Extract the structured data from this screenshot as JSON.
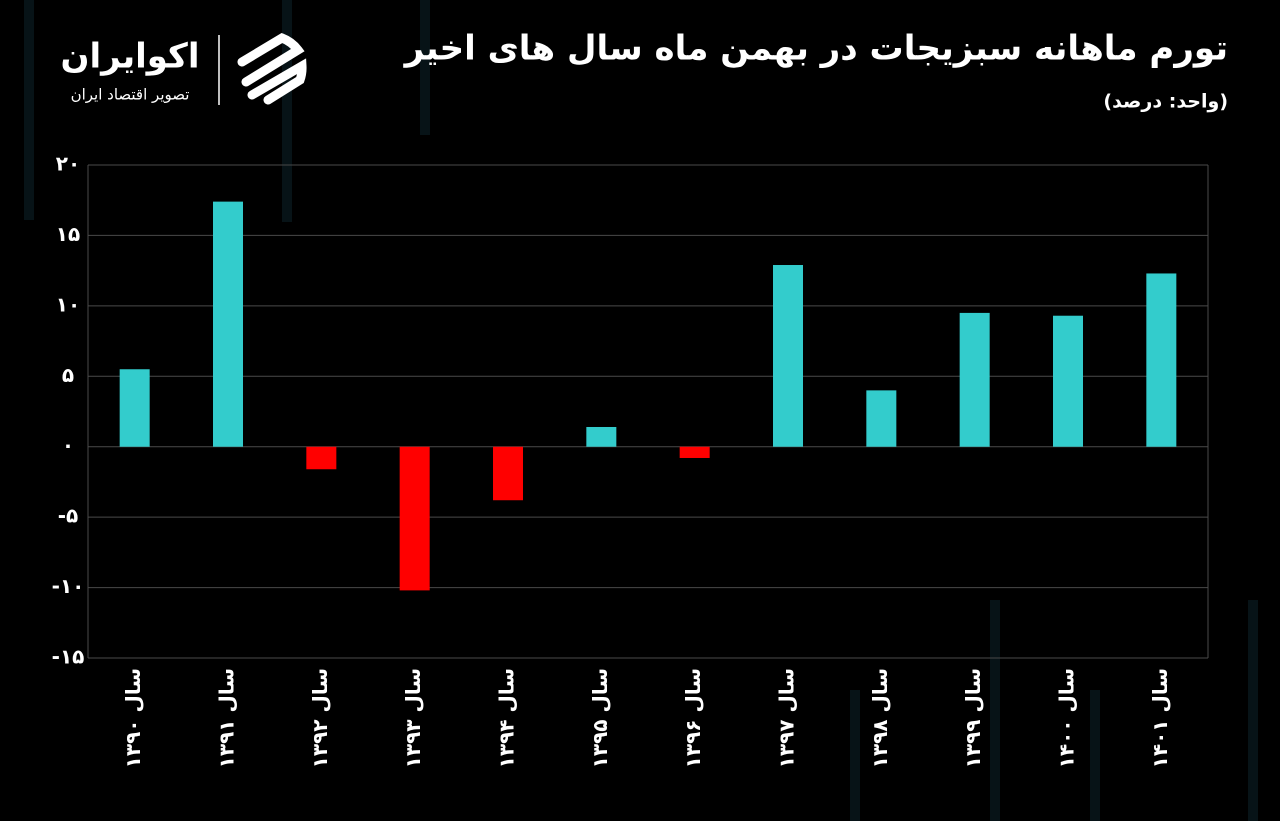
{
  "brand": {
    "name": "اکوایران",
    "tagline": "تصویر اقتصاد ایران"
  },
  "chart_data": {
    "type": "bar",
    "title": "تورم ماهانه سبزیجات در بهمن ماه سال های اخیر",
    "subtitle": "(واحد: درصد)",
    "categories": [
      "سال ۱۳۹۰",
      "سال ۱۳۹۱",
      "سال ۱۳۹۲",
      "سال ۱۳۹۳",
      "سال ۱۳۹۴",
      "سال ۱۳۹۵",
      "سال ۱۳۹۶",
      "سال ۱۳۹۷",
      "سال ۱۳۹۸",
      "سال ۱۳۹۹",
      "سال ۱۴۰۰",
      "سال ۱۴۰۱"
    ],
    "values": [
      5.5,
      17.4,
      -1.6,
      -10.2,
      -3.8,
      1.4,
      -0.8,
      12.9,
      4.0,
      9.5,
      9.3,
      12.3
    ],
    "positive_color": "#33cccc",
    "negative_color": "#ff0000",
    "ylim": [
      -15,
      20
    ],
    "yticks": [
      {
        "value": 20,
        "label": "۲۰"
      },
      {
        "value": 15,
        "label": "۱۵"
      },
      {
        "value": 10,
        "label": "۱۰"
      },
      {
        "value": 5,
        "label": "۵"
      },
      {
        "value": 0,
        "label": "۰"
      },
      {
        "value": -5,
        "label": "-۵"
      },
      {
        "value": -10,
        "label": "-۱۰"
      },
      {
        "value": -15,
        "label": "-۱۵"
      }
    ],
    "grid": true
  }
}
